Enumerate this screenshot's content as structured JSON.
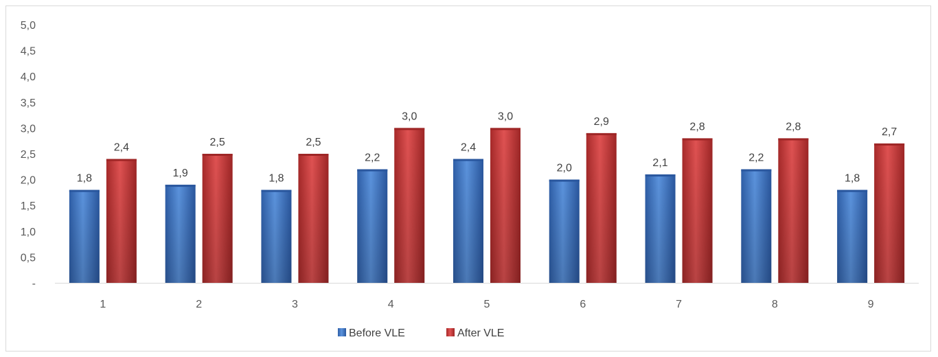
{
  "chart_data": {
    "type": "bar",
    "categories": [
      "1",
      "2",
      "3",
      "4",
      "5",
      "6",
      "7",
      "8",
      "9"
    ],
    "series": [
      {
        "name": "Before VLE",
        "values": [
          1.8,
          1.9,
          1.8,
          2.2,
          2.4,
          2.0,
          2.1,
          2.2,
          1.8
        ],
        "color": "#3b73c4"
      },
      {
        "name": "After VLE",
        "values": [
          2.4,
          2.5,
          2.5,
          3.0,
          3.0,
          2.9,
          2.8,
          2.8,
          2.7
        ],
        "color": "#c23b3b"
      }
    ],
    "data_labels": [
      [
        "1,8",
        "1,9",
        "1,8",
        "2,2",
        "2,4",
        "2,0",
        "2,1",
        "2,2",
        "1,8"
      ],
      [
        "2,4",
        "2,5",
        "2,5",
        "3,0",
        "3,0",
        "2,9",
        "2,8",
        "2,8",
        "2,7"
      ]
    ],
    "y_tick_labels": [
      "-",
      "0,5",
      "1,0",
      "1,5",
      "2,0",
      "2,5",
      "3,0",
      "3,5",
      "4,0",
      "4,5",
      "5,0"
    ],
    "ylim": [
      0,
      5
    ],
    "grid": false,
    "legend_position": "bottom"
  }
}
